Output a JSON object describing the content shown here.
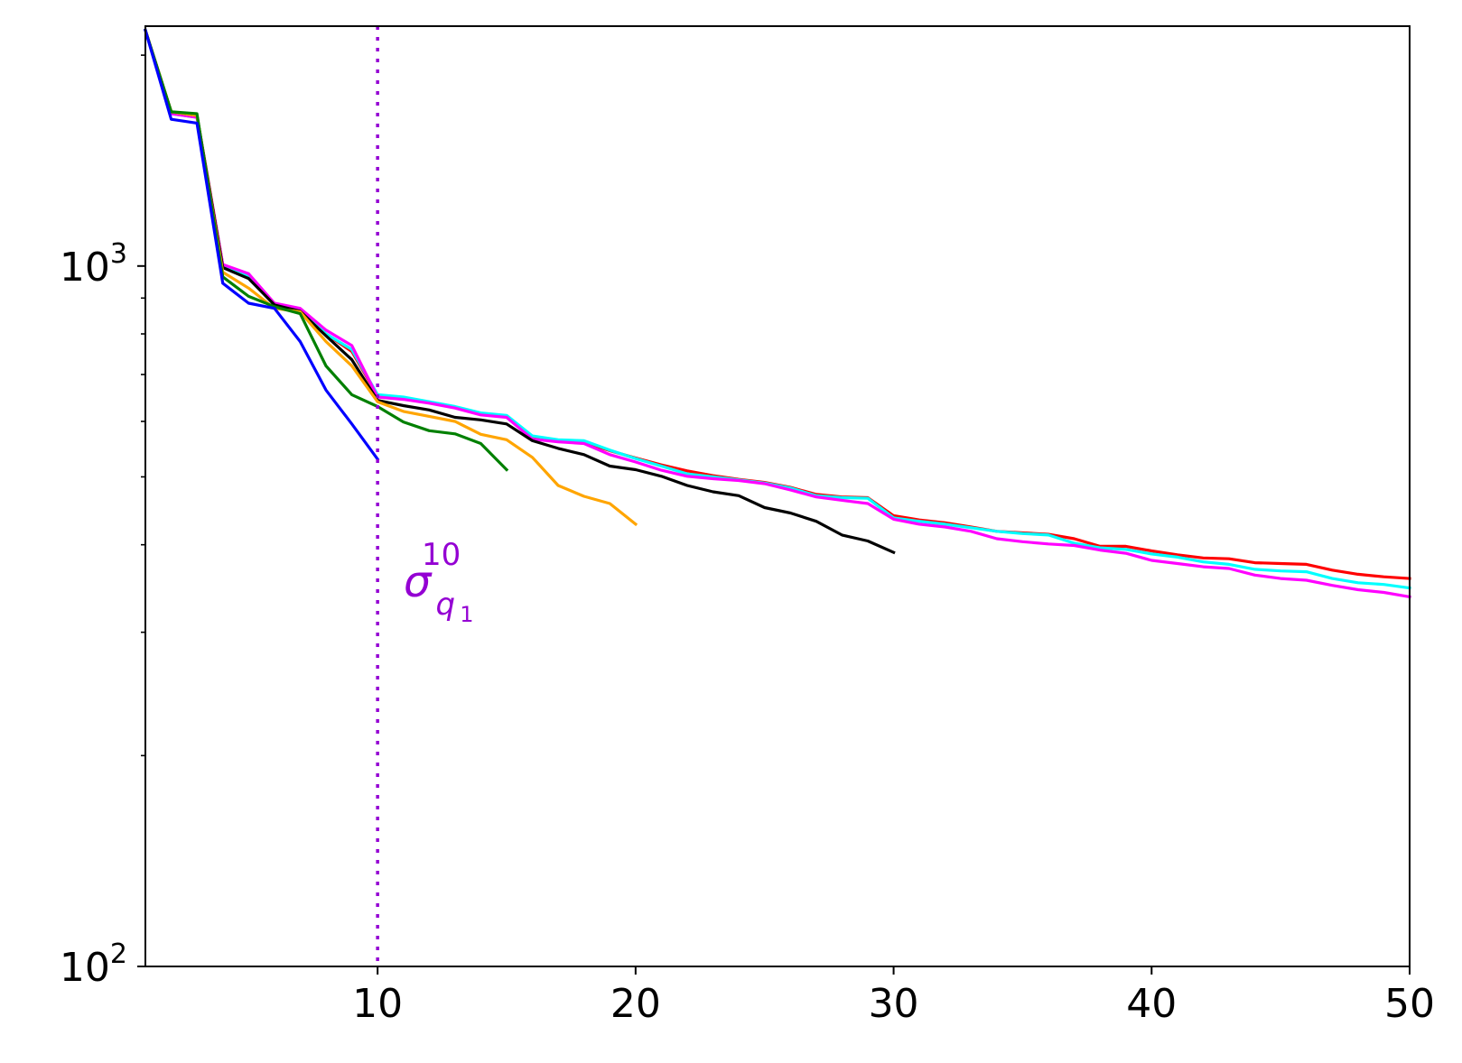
{
  "chart_data": {
    "type": "line",
    "title": "",
    "xlabel": "",
    "ylabel": "",
    "xscale": "linear",
    "yscale": "log",
    "xlim": [
      1,
      50
    ],
    "ylim": [
      100,
      2200
    ],
    "grid": false,
    "legend": "none",
    "x_ticks": [
      10,
      20,
      30,
      40,
      50
    ],
    "x_tick_labels": [
      "10",
      "20",
      "30",
      "40",
      "50"
    ],
    "y_ticks": [
      100,
      1000
    ],
    "y_tick_labels": [
      {
        "base": "10",
        "exp": "2"
      },
      {
        "base": "10",
        "exp": "3"
      }
    ],
    "y_minor_ticks": [
      200,
      300,
      400,
      500,
      600,
      700,
      800,
      900,
      2000
    ],
    "vline": {
      "x": 10,
      "color": "#9400d3",
      "style": "dotted",
      "label_main": "σ",
      "label_sub_letter": "q",
      "label_sub_index": "1",
      "label_sup": "10"
    },
    "series": [
      {
        "name": "red",
        "color": "#ff0000",
        "x": [
          1,
          2,
          3,
          4,
          5,
          6,
          7,
          8,
          9,
          10,
          11,
          12,
          13,
          14,
          15,
          16,
          17,
          18,
          19,
          20,
          21,
          22,
          23,
          24,
          25,
          26,
          27,
          28,
          29,
          30,
          31,
          32,
          33,
          34,
          35,
          36,
          37,
          38,
          39,
          40,
          41,
          42,
          43,
          44,
          45,
          46,
          47,
          48,
          49,
          50
        ],
        "values": [
          2170,
          1660,
          1640,
          1005,
          970,
          880,
          865,
          800,
          755,
          653,
          648,
          638,
          628,
          615,
          610,
          567,
          562,
          560,
          545,
          532,
          520,
          510,
          502,
          496,
          491,
          483,
          472,
          468,
          467,
          440,
          434,
          430,
          424,
          418,
          416,
          414,
          408,
          398,
          398,
          392,
          387,
          383,
          382,
          377,
          376,
          375,
          368,
          363,
          360,
          358
        ]
      },
      {
        "name": "cyan",
        "color": "#00ffff",
        "x": [
          1,
          2,
          3,
          4,
          5,
          6,
          7,
          8,
          9,
          10,
          11,
          12,
          13,
          14,
          15,
          16,
          17,
          18,
          19,
          20,
          21,
          22,
          23,
          24,
          25,
          26,
          27,
          28,
          29,
          30,
          31,
          32,
          33,
          34,
          35,
          36,
          37,
          38,
          39,
          40,
          41,
          42,
          43,
          44,
          45,
          46,
          47,
          48,
          49,
          50
        ],
        "values": [
          2170,
          1650,
          1630,
          1000,
          965,
          880,
          865,
          800,
          760,
          655,
          650,
          640,
          630,
          617,
          612,
          572,
          565,
          563,
          546,
          531,
          518,
          505,
          500,
          495,
          490,
          482,
          470,
          467,
          466,
          437,
          432,
          428,
          423,
          418,
          415,
          413,
          402,
          396,
          394,
          388,
          384,
          378,
          375,
          369,
          367,
          366,
          358,
          353,
          351,
          347
        ]
      },
      {
        "name": "magenta",
        "color": "#ff00ff",
        "x": [
          1,
          2,
          3,
          4,
          5,
          6,
          7,
          8,
          9,
          10,
          11,
          12,
          13,
          14,
          15,
          16,
          17,
          18,
          19,
          20,
          21,
          22,
          23,
          24,
          25,
          26,
          27,
          28,
          29,
          30,
          31,
          32,
          33,
          34,
          35,
          36,
          37,
          38,
          39,
          40,
          41,
          42,
          43,
          44,
          45,
          46,
          47,
          48,
          49,
          50
        ],
        "values": [
          2170,
          1650,
          1630,
          1005,
          975,
          885,
          870,
          810,
          770,
          650,
          645,
          637,
          627,
          613,
          608,
          566,
          561,
          558,
          538,
          525,
          511,
          501,
          497,
          494,
          489,
          479,
          468,
          463,
          458,
          435,
          428,
          424,
          418,
          408,
          404,
          401,
          399,
          393,
          389,
          380,
          376,
          372,
          370,
          362,
          358,
          356,
          350,
          345,
          342,
          337
        ]
      },
      {
        "name": "black",
        "color": "#000000",
        "x": [
          1,
          2,
          3,
          4,
          5,
          6,
          7,
          8,
          9,
          10,
          11,
          12,
          13,
          14,
          15,
          16,
          17,
          18,
          19,
          20,
          21,
          22,
          23,
          24,
          25,
          26,
          27,
          28,
          29,
          30
        ],
        "values": [
          2170,
          1660,
          1640,
          995,
          960,
          880,
          862,
          795,
          735,
          643,
          632,
          623,
          608,
          603,
          595,
          563,
          549,
          538,
          518,
          512,
          501,
          486,
          476,
          470,
          452,
          444,
          432,
          413,
          405,
          390
        ]
      },
      {
        "name": "orange",
        "color": "#ffa500",
        "x": [
          1,
          2,
          3,
          4,
          5,
          6,
          7,
          8,
          9,
          10,
          11,
          12,
          13,
          14,
          15,
          16,
          17,
          18,
          19,
          20
        ],
        "values": [
          2170,
          1660,
          1640,
          980,
          930,
          870,
          860,
          780,
          720,
          640,
          620,
          610,
          600,
          575,
          565,
          533,
          486,
          469,
          458,
          428
        ]
      },
      {
        "name": "green",
        "color": "#008000",
        "x": [
          1,
          2,
          3,
          4,
          5,
          6,
          7,
          8,
          9,
          10,
          11,
          12,
          13,
          14,
          15
        ],
        "values": [
          2170,
          1660,
          1650,
          965,
          905,
          875,
          855,
          720,
          655,
          630,
          599,
          582,
          576,
          558,
          512
        ]
      },
      {
        "name": "blue",
        "color": "#0000ff",
        "x": [
          1,
          2,
          3,
          4,
          5,
          6,
          7,
          8,
          9,
          10
        ],
        "values": [
          2170,
          1620,
          1600,
          945,
          885,
          870,
          780,
          665,
          595,
          530
        ]
      }
    ]
  }
}
